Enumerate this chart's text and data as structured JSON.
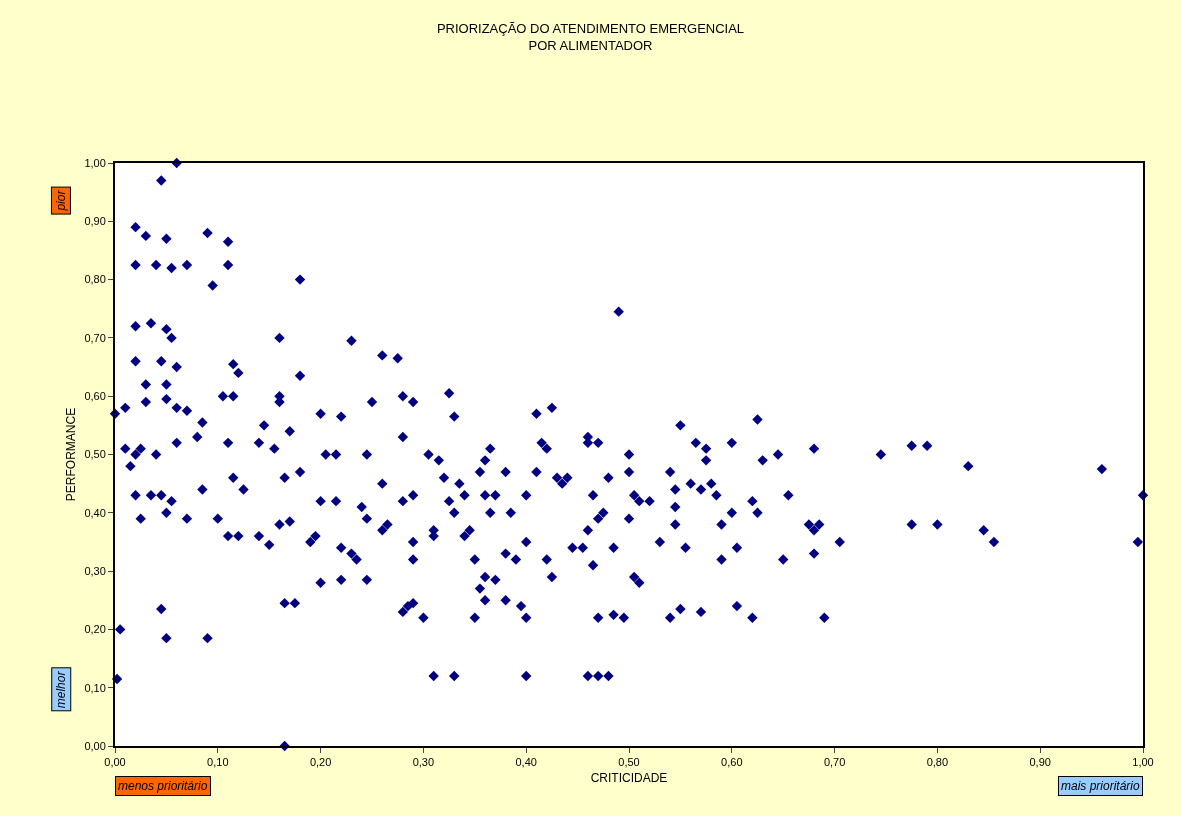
{
  "chart_data": {
    "type": "scatter",
    "title": "PRIORIZAÇÃO DO ATENDIMENTO EMERGENCIAL\nPOR ALIMENTADOR",
    "xlabel": "CRITICIDADE",
    "ylabel": "PERFORMANCE",
    "annotations": [
      "pior",
      "melhor",
      "menos prioritário",
      "mais prioritário"
    ],
    "marker": "diamond",
    "xlim": [
      0,
      1
    ],
    "ylim": [
      0,
      1
    ],
    "xticks": [
      {
        "value": 0,
        "label": "0,00"
      },
      {
        "value": 0.1,
        "label": "0,10"
      },
      {
        "value": 0.2,
        "label": "0,20"
      },
      {
        "value": 0.3,
        "label": "0,30"
      },
      {
        "value": 0.4,
        "label": "0,40"
      },
      {
        "value": 0.5,
        "label": "0,50"
      },
      {
        "value": 0.6,
        "label": "0,60"
      },
      {
        "value": 0.7,
        "label": "0,70"
      },
      {
        "value": 0.8,
        "label": "0,80"
      },
      {
        "value": 0.9,
        "label": "0,90"
      },
      {
        "value": 1,
        "label": "1,00"
      }
    ],
    "yticks": [
      {
        "value": 0,
        "label": "0,00"
      },
      {
        "value": 0.1,
        "label": "0,10"
      },
      {
        "value": 0.2,
        "label": "0,20"
      },
      {
        "value": 0.3,
        "label": "0,30"
      },
      {
        "value": 0.4,
        "label": "0,40"
      },
      {
        "value": 0.5,
        "label": "0,50"
      },
      {
        "value": 0.6,
        "label": "0,60"
      },
      {
        "value": 0.7,
        "label": "0,70"
      },
      {
        "value": 0.8,
        "label": "0,80"
      },
      {
        "value": 0.9,
        "label": "0,90"
      },
      {
        "value": 1,
        "label": "1,00"
      }
    ],
    "series": [
      {
        "color": "#000080",
        "x": [
          0.06,
          0.045,
          0.02,
          0.03,
          0.05,
          0.09,
          0.11,
          0.02,
          0.04,
          0.055,
          0.07,
          0.11,
          0.095,
          0.18,
          0.02,
          0.035,
          0.05,
          0.055,
          0.16,
          0.23,
          0.26,
          0.275,
          0.02,
          0.045,
          0.06,
          0.115,
          0.12,
          0.18,
          0.0,
          0.01,
          0.03,
          0.05,
          0.06,
          0.07,
          0.03,
          0.05,
          0.085,
          0.105,
          0.115,
          0.16,
          0.16,
          0.25,
          0.22,
          0.28,
          0.29,
          0.325,
          0.33,
          0.01,
          0.02,
          0.025,
          0.015,
          0.04,
          0.06,
          0.08,
          0.11,
          0.14,
          0.145,
          0.155,
          0.17,
          0.2,
          0.205,
          0.215,
          0.245,
          0.26,
          0.18,
          0.165,
          0.02,
          0.035,
          0.045,
          0.055,
          0.05,
          0.07,
          0.025,
          0.085,
          0.1,
          0.11,
          0.12,
          0.115,
          0.125,
          0.14,
          0.15,
          0.16,
          0.17,
          0.19,
          0.195,
          0.2,
          0.215,
          0.22,
          0.23,
          0.235,
          0.245,
          0.24,
          0.26,
          0.265,
          0.2,
          0.22,
          0.245,
          0.045,
          0.05,
          0.09,
          0.005,
          0.002,
          0.165,
          0.175,
          0.165,
          0.28,
          0.28,
          0.29,
          0.29,
          0.29,
          0.28,
          0.285,
          0.29,
          0.3,
          0.31,
          0.31,
          0.305,
          0.315,
          0.32,
          0.325,
          0.33,
          0.335,
          0.34,
          0.34,
          0.345,
          0.35,
          0.35,
          0.355,
          0.36,
          0.365,
          0.36,
          0.365,
          0.37,
          0.36,
          0.37,
          0.36,
          0.355,
          0.38,
          0.39,
          0.385,
          0.38,
          0.38,
          0.395,
          0.4,
          0.4,
          0.4,
          0.41,
          0.415,
          0.42,
          0.41,
          0.425,
          0.42,
          0.425,
          0.43,
          0.435,
          0.44,
          0.445,
          0.455,
          0.46,
          0.46,
          0.465,
          0.47,
          0.47,
          0.475,
          0.46,
          0.465,
          0.48,
          0.485,
          0.47,
          0.485,
          0.495,
          0.49,
          0.5,
          0.5,
          0.505,
          0.51,
          0.52,
          0.5,
          0.505,
          0.51,
          0.53,
          0.54,
          0.545,
          0.545,
          0.545,
          0.55,
          0.555,
          0.56,
          0.565,
          0.57,
          0.575,
          0.575,
          0.58,
          0.585,
          0.59,
          0.59,
          0.54,
          0.55,
          0.57,
          0.6,
          0.6,
          0.605,
          0.605,
          0.62,
          0.625,
          0.625,
          0.63,
          0.62,
          0.46,
          0.47,
          0.48,
          0.4,
          0.33,
          0.31,
          0.645,
          0.655,
          0.65,
          0.675,
          0.68,
          0.685,
          0.68,
          0.68,
          0.69,
          0.705,
          0.745,
          0.775,
          0.79,
          0.775,
          0.8,
          0.83,
          0.845,
          0.855,
          0.96,
          0.995,
          1.0
        ],
        "values": [
          1.0,
          0.97,
          0.89,
          0.875,
          0.87,
          0.88,
          0.865,
          0.825,
          0.825,
          0.82,
          0.825,
          0.825,
          0.79,
          0.8,
          0.72,
          0.725,
          0.715,
          0.7,
          0.7,
          0.695,
          0.67,
          0.665,
          0.66,
          0.66,
          0.65,
          0.655,
          0.64,
          0.635,
          0.57,
          0.58,
          0.59,
          0.595,
          0.58,
          0.575,
          0.62,
          0.62,
          0.555,
          0.6,
          0.6,
          0.6,
          0.59,
          0.59,
          0.565,
          0.6,
          0.59,
          0.605,
          0.565,
          0.51,
          0.5,
          0.51,
          0.48,
          0.5,
          0.52,
          0.53,
          0.52,
          0.52,
          0.55,
          0.51,
          0.54,
          0.57,
          0.5,
          0.5,
          0.5,
          0.45,
          0.47,
          0.46,
          0.43,
          0.43,
          0.43,
          0.42,
          0.4,
          0.39,
          0.39,
          0.44,
          0.39,
          0.36,
          0.36,
          0.46,
          0.44,
          0.36,
          0.345,
          0.38,
          0.385,
          0.35,
          0.36,
          0.42,
          0.42,
          0.34,
          0.33,
          0.32,
          0.39,
          0.41,
          0.37,
          0.38,
          0.28,
          0.285,
          0.285,
          0.235,
          0.185,
          0.185,
          0.2,
          0.115,
          0.245,
          0.245,
          0.0,
          0.53,
          0.42,
          0.43,
          0.35,
          0.32,
          0.23,
          0.24,
          0.245,
          0.22,
          0.37,
          0.36,
          0.5,
          0.49,
          0.46,
          0.42,
          0.4,
          0.45,
          0.43,
          0.36,
          0.37,
          0.32,
          0.22,
          0.47,
          0.49,
          0.51,
          0.43,
          0.4,
          0.43,
          0.29,
          0.285,
          0.25,
          0.27,
          0.33,
          0.32,
          0.4,
          0.47,
          0.25,
          0.24,
          0.22,
          0.35,
          0.43,
          0.47,
          0.52,
          0.51,
          0.57,
          0.58,
          0.32,
          0.29,
          0.46,
          0.45,
          0.46,
          0.34,
          0.34,
          0.52,
          0.53,
          0.43,
          0.52,
          0.39,
          0.4,
          0.37,
          0.31,
          0.46,
          0.34,
          0.22,
          0.225,
          0.22,
          0.745,
          0.47,
          0.5,
          0.43,
          0.42,
          0.42,
          0.39,
          0.29,
          0.28,
          0.35,
          0.47,
          0.44,
          0.41,
          0.38,
          0.55,
          0.34,
          0.45,
          0.52,
          0.44,
          0.51,
          0.49,
          0.45,
          0.43,
          0.38,
          0.32,
          0.22,
          0.235,
          0.23,
          0.52,
          0.4,
          0.34,
          0.24,
          0.42,
          0.4,
          0.56,
          0.49,
          0.22,
          0.12,
          0.12,
          0.12,
          0.12,
          0.12,
          0.12,
          0.5,
          0.43,
          0.32,
          0.38,
          0.37,
          0.38,
          0.33,
          0.51,
          0.22,
          0.35,
          0.5,
          0.515,
          0.515,
          0.38,
          0.38,
          0.48,
          0.37,
          0.35,
          0.475,
          0.35,
          0.43
        ]
      }
    ]
  }
}
